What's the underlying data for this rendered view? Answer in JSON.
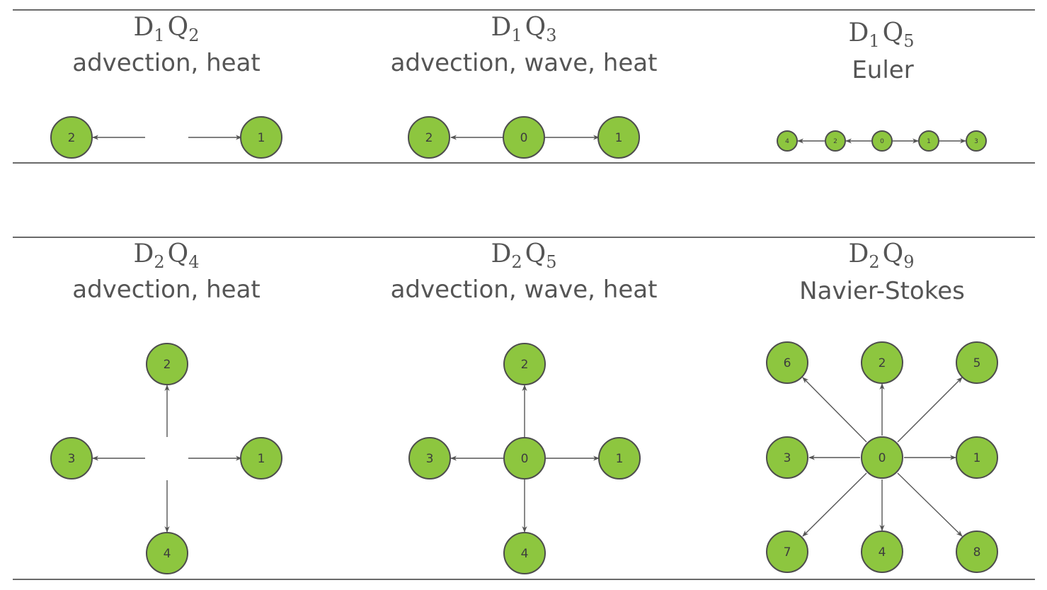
{
  "panels": [
    {
      "id": "d1q2",
      "title": {
        "d": "D",
        "d_sub": "1",
        "q": "Q",
        "q_sub": "2"
      },
      "caption": "advection, heat",
      "nodes": [
        {
          "label": "2"
        },
        {
          "label": "1"
        }
      ]
    },
    {
      "id": "d1q3",
      "title": {
        "d": "D",
        "d_sub": "1",
        "q": "Q",
        "q_sub": "3"
      },
      "caption": "advection, wave, heat",
      "nodes": [
        {
          "label": "2"
        },
        {
          "label": "0"
        },
        {
          "label": "1"
        }
      ]
    },
    {
      "id": "d1q5",
      "title": {
        "d": "D",
        "d_sub": "1",
        "q": "Q",
        "q_sub": "5"
      },
      "caption": "Euler",
      "nodes": [
        {
          "label": "4"
        },
        {
          "label": "2"
        },
        {
          "label": "0"
        },
        {
          "label": "1"
        },
        {
          "label": "3"
        }
      ]
    },
    {
      "id": "d2q4",
      "title": {
        "d": "D",
        "d_sub": "2",
        "q": "Q",
        "q_sub": "4"
      },
      "caption": "advection, heat",
      "nodes": [
        {
          "label": "2"
        },
        {
          "label": "3"
        },
        {
          "label": "1"
        },
        {
          "label": "4"
        }
      ]
    },
    {
      "id": "d2q5",
      "title": {
        "d": "D",
        "d_sub": "2",
        "q": "Q",
        "q_sub": "5"
      },
      "caption": "advection, wave, heat",
      "nodes": [
        {
          "label": "2"
        },
        {
          "label": "3"
        },
        {
          "label": "0"
        },
        {
          "label": "1"
        },
        {
          "label": "4"
        }
      ]
    },
    {
      "id": "d2q9",
      "title": {
        "d": "D",
        "d_sub": "2",
        "q": "Q",
        "q_sub": "9"
      },
      "caption": "Navier-Stokes",
      "nodes": [
        {
          "label": "6"
        },
        {
          "label": "2"
        },
        {
          "label": "5"
        },
        {
          "label": "3"
        },
        {
          "label": "0"
        },
        {
          "label": "1"
        },
        {
          "label": "7"
        },
        {
          "label": "4"
        },
        {
          "label": "8"
        }
      ]
    }
  ],
  "colors": {
    "node_fill": "#8dc63f",
    "node_stroke": "#4d4d4d",
    "edge": "#555555",
    "text": "#555555",
    "rule": "#6a6a6a"
  }
}
